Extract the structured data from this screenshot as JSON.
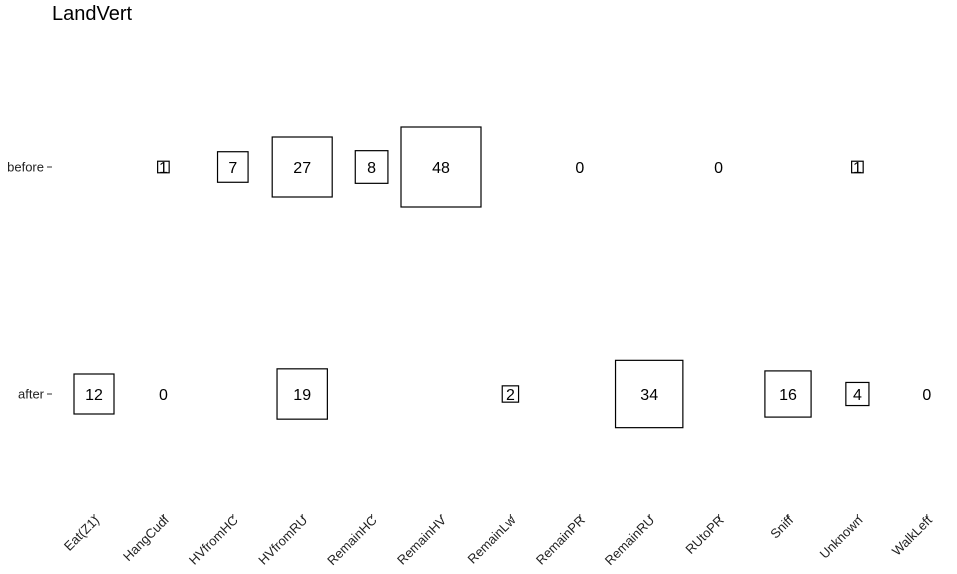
{
  "chart_data": {
    "type": "table",
    "title": "LandVert",
    "xlabel": "",
    "ylabel": "",
    "rows": [
      "before",
      "after"
    ],
    "columns": [
      "Eat(Z1)",
      "HangCudl",
      "HVfromHC",
      "HVfromRU",
      "RemainHC",
      "RemainHV",
      "RemainLw",
      "RemainPR",
      "RemainRU",
      "RUtoPR",
      "Sniff",
      "Unknown",
      "WalkLeft"
    ],
    "cells": [
      {
        "row": "before",
        "column": "HangCudl",
        "value": 1
      },
      {
        "row": "before",
        "column": "HVfromHC",
        "value": 7
      },
      {
        "row": "before",
        "column": "HVfromRU",
        "value": 27
      },
      {
        "row": "before",
        "column": "RemainHC",
        "value": 8
      },
      {
        "row": "before",
        "column": "RemainHV",
        "value": 48
      },
      {
        "row": "before",
        "column": "RemainPR",
        "value": 0
      },
      {
        "row": "before",
        "column": "RUtoPR",
        "value": 0
      },
      {
        "row": "before",
        "column": "Unknown",
        "value": 1
      },
      {
        "row": "after",
        "column": "Eat(Z1)",
        "value": 12
      },
      {
        "row": "after",
        "column": "HangCudl",
        "value": 0
      },
      {
        "row": "after",
        "column": "HVfromRU",
        "value": 19
      },
      {
        "row": "after",
        "column": "RemainLw",
        "value": 2
      },
      {
        "row": "after",
        "column": "RemainRU",
        "value": 34
      },
      {
        "row": "after",
        "column": "Sniff",
        "value": 16
      },
      {
        "row": "after",
        "column": "Unknown",
        "value": 4
      },
      {
        "row": "after",
        "column": "WalkLeft",
        "value": 0
      }
    ]
  }
}
